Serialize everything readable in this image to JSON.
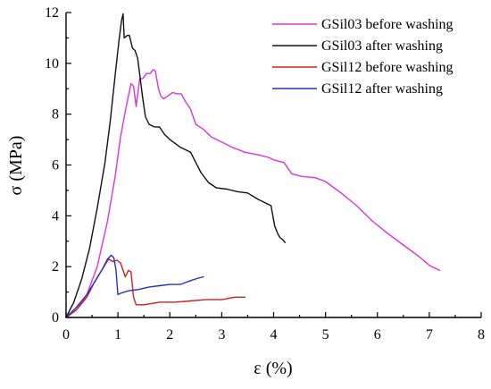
{
  "chart_data": {
    "type": "line",
    "title": "",
    "xlabel": "ε (%)",
    "ylabel": "σ (MPa)",
    "xlim": [
      0,
      8
    ],
    "ylim": [
      0,
      12
    ],
    "xticks": [
      0,
      1,
      2,
      3,
      4,
      5,
      6,
      7,
      8
    ],
    "yticks": [
      0,
      2,
      4,
      6,
      8,
      10,
      12
    ],
    "grid": false,
    "legend_position": "top-right",
    "series": [
      {
        "name": "GSil03 before washing",
        "color": "#dd33dd",
        "x": [
          0,
          0.2,
          0.4,
          0.6,
          0.8,
          0.95,
          1.05,
          1.15,
          1.25,
          1.3,
          1.35,
          1.42,
          1.48,
          1.55,
          1.62,
          1.68,
          1.72,
          1.78,
          1.83,
          1.88,
          1.95,
          2.05,
          2.15,
          2.22,
          2.3,
          2.4,
          2.5,
          2.65,
          2.8,
          3.0,
          3.2,
          3.45,
          3.7,
          3.9,
          4.0,
          4.2,
          4.35,
          4.55,
          4.8,
          5.0,
          5.3,
          5.6,
          5.9,
          6.2,
          6.5,
          6.8,
          7.0,
          7.2
        ],
        "y": [
          0,
          0.3,
          0.9,
          2.0,
          3.8,
          5.6,
          7.1,
          8.2,
          9.2,
          9.1,
          8.3,
          9.4,
          9.4,
          9.6,
          9.6,
          9.75,
          9.7,
          9.0,
          8.7,
          8.6,
          8.7,
          8.85,
          8.8,
          8.8,
          8.5,
          8.2,
          7.6,
          7.4,
          7.1,
          6.9,
          6.7,
          6.5,
          6.4,
          6.3,
          6.2,
          6.1,
          5.65,
          5.55,
          5.5,
          5.35,
          4.9,
          4.4,
          3.8,
          3.3,
          2.85,
          2.4,
          2.05,
          1.85
        ]
      },
      {
        "name": "GSil03 after washing",
        "color": "#111111",
        "x": [
          0,
          0.15,
          0.3,
          0.45,
          0.6,
          0.75,
          0.85,
          0.95,
          1.02,
          1.07,
          1.1,
          1.12,
          1.18,
          1.22,
          1.28,
          1.33,
          1.38,
          1.43,
          1.48,
          1.53,
          1.6,
          1.7,
          1.8,
          1.9,
          2.0,
          2.2,
          2.4,
          2.5,
          2.6,
          2.75,
          2.9,
          3.1,
          3.3,
          3.5,
          3.7,
          3.85,
          3.95,
          4.02,
          4.08,
          4.12,
          4.18,
          4.22
        ],
        "y": [
          0,
          0.6,
          1.5,
          2.7,
          4.3,
          6.1,
          7.7,
          9.6,
          10.9,
          11.7,
          11.95,
          11.0,
          11.1,
          11.1,
          10.6,
          10.5,
          10.2,
          9.4,
          8.6,
          7.9,
          7.6,
          7.5,
          7.5,
          7.2,
          7.0,
          6.7,
          6.5,
          6.1,
          5.7,
          5.3,
          5.1,
          5.05,
          4.95,
          4.9,
          4.65,
          4.5,
          4.4,
          3.6,
          3.3,
          3.15,
          3.05,
          2.95
        ]
      },
      {
        "name": "GSil12 before washing",
        "color": "#cc2222",
        "x": [
          0,
          0.2,
          0.4,
          0.55,
          0.7,
          0.82,
          0.9,
          0.98,
          1.05,
          1.1,
          1.14,
          1.2,
          1.25,
          1.3,
          1.35,
          1.5,
          1.8,
          2.1,
          2.4,
          2.7,
          3.0,
          3.25,
          3.45
        ],
        "y": [
          0,
          0.3,
          0.8,
          1.4,
          1.9,
          2.3,
          2.2,
          2.25,
          2.15,
          1.85,
          1.6,
          1.85,
          1.8,
          0.8,
          0.5,
          0.5,
          0.6,
          0.6,
          0.65,
          0.7,
          0.7,
          0.8,
          0.8
        ]
      },
      {
        "name": "GSil12 after washing",
        "color": "#2233bb",
        "x": [
          0,
          0.2,
          0.4,
          0.55,
          0.7,
          0.8,
          0.87,
          0.92,
          0.96,
          1.0,
          1.05,
          1.2,
          1.4,
          1.6,
          1.8,
          2.0,
          2.2,
          2.4,
          2.55,
          2.65
        ],
        "y": [
          0,
          0.4,
          0.9,
          1.4,
          1.9,
          2.3,
          2.45,
          2.35,
          1.9,
          0.9,
          0.95,
          1.05,
          1.1,
          1.2,
          1.25,
          1.3,
          1.3,
          1.45,
          1.55,
          1.6
        ]
      }
    ]
  }
}
